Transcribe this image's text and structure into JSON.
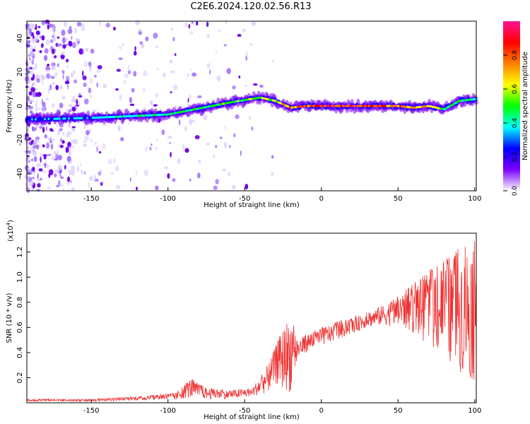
{
  "title": "C2E6.2024.120.02.56.R13",
  "chart_data": [
    {
      "type": "heatmap",
      "xlabel": "Height of straight line (km)",
      "ylabel": "Frequency (Hz)",
      "xlim": [
        -192,
        101
      ],
      "ylim": [
        -50,
        50
      ],
      "xticks": [
        -150,
        -100,
        -50,
        0,
        50,
        100
      ],
      "yticks": [
        -40,
        -20,
        0,
        20,
        40
      ],
      "colorbar": {
        "label": "Normalized spectral amplitude",
        "range": [
          0,
          1
        ],
        "ticks": [
          "0.0",
          "0.2",
          "0.4",
          "0.6",
          "0.8"
        ],
        "colors": [
          "#ffffff",
          "#7a00ff",
          "#0000ff",
          "#00ffff",
          "#00ff00",
          "#ffff00",
          "#ff7f00",
          "#ff0000",
          "#ff1493"
        ]
      },
      "ridge": {
        "x": [
          -192,
          -150,
          -100,
          -60,
          -40,
          -30,
          -20,
          -10,
          0,
          10,
          20,
          30,
          40,
          50,
          60,
          70,
          80,
          90,
          100
        ],
        "frequency_hz": [
          -8,
          -7,
          -5,
          2,
          5,
          3,
          -1,
          0,
          0,
          0,
          0,
          0,
          0,
          0,
          -1,
          0,
          -2,
          3,
          4
        ],
        "peak_amplitude": [
          0.3,
          0.4,
          0.5,
          0.55,
          0.6,
          0.7,
          0.8,
          0.9,
          0.95,
          0.95,
          0.95,
          0.9,
          0.85,
          0.8,
          0.75,
          0.7,
          0.55,
          0.5,
          0.45
        ]
      }
    },
    {
      "type": "line",
      "xlabel": "Height of straight line (km)",
      "ylabel": "SNR (10 * v/v)",
      "multiplier": "(x10",
      "multiplier_exp": "4",
      "multiplier_close": ")",
      "xlim": [
        -192,
        101
      ],
      "ylim": [
        0,
        1.35
      ],
      "xticks": [
        -150,
        -100,
        -50,
        0,
        50,
        100
      ],
      "yticks": [
        "0.2",
        "0.4",
        "0.6",
        "0.8",
        "1.0",
        "1.2"
      ],
      "color": "#ee3333",
      "envelope": {
        "x": [
          -192,
          -150,
          -120,
          -95,
          -85,
          -75,
          -60,
          -45,
          -35,
          -30,
          -25,
          -20,
          -15,
          -10,
          0,
          10,
          20,
          30,
          40,
          50,
          60,
          70,
          80,
          90,
          100
        ],
        "lower": [
          0.01,
          0.01,
          0.02,
          0.02,
          0.04,
          0.03,
          0.03,
          0.05,
          0.08,
          0.15,
          0.1,
          0.08,
          0.35,
          0.4,
          0.45,
          0.5,
          0.55,
          0.6,
          0.62,
          0.6,
          0.55,
          0.45,
          0.35,
          0.25,
          0.15
        ],
        "upper": [
          0.03,
          0.03,
          0.05,
          0.08,
          0.2,
          0.12,
          0.1,
          0.12,
          0.3,
          0.45,
          0.6,
          0.72,
          0.5,
          0.55,
          0.6,
          0.65,
          0.68,
          0.72,
          0.78,
          0.85,
          0.95,
          1.05,
          1.15,
          1.25,
          1.3
        ]
      }
    }
  ]
}
